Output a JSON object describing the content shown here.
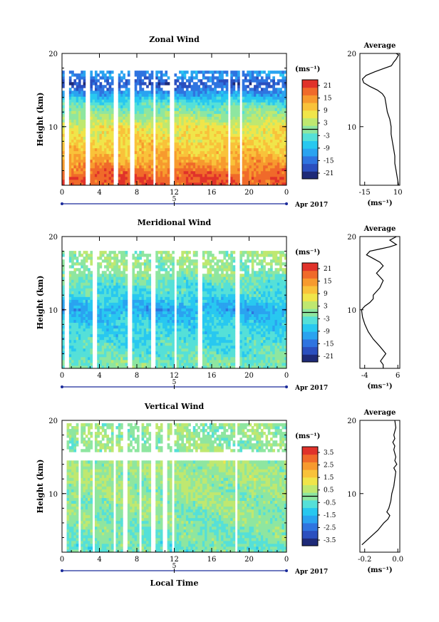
{
  "page": {
    "date_label": "Apr 2017",
    "xlabel": "Local Time"
  },
  "panels": [
    {
      "title": "Zonal Wind",
      "ylabel": "Height (km)",
      "y_ticks": [
        "20",
        "10"
      ],
      "x_ticks": [
        "0",
        "4",
        "8",
        "12",
        "16",
        "20",
        "0"
      ],
      "day_label": "5",
      "unit_label": "(ms⁻¹)",
      "cbar_ticks": [
        "21",
        "15",
        "9",
        "3",
        "-3",
        "-9",
        "-15",
        "-21"
      ],
      "avg_title": "Average",
      "avg_x_ticks": [
        "-15",
        "10"
      ],
      "avg_unit": "(ms⁻¹)"
    },
    {
      "title": "Meridional Wind",
      "ylabel": "Height (km)",
      "y_ticks": [
        "20",
        "10"
      ],
      "x_ticks": [
        "0",
        "4",
        "8",
        "12",
        "16",
        "20",
        "0"
      ],
      "day_label": "5",
      "unit_label": "(ms⁻¹)",
      "cbar_ticks": [
        "21",
        "15",
        "9",
        "3",
        "-3",
        "-9",
        "-15",
        "-21"
      ],
      "avg_title": "Average",
      "avg_x_ticks": [
        "-4",
        "6"
      ],
      "avg_unit": "(ms⁻¹)"
    },
    {
      "title": "Vertical Wind",
      "ylabel": "Height (km)",
      "y_ticks": [
        "20",
        "10"
      ],
      "x_ticks": [
        "0",
        "4",
        "8",
        "12",
        "16",
        "20",
        "0"
      ],
      "day_label": "5",
      "unit_label": "(ms⁻¹)",
      "cbar_ticks": [
        "3.5",
        "2.5",
        "1.5",
        "0.5",
        "-0.5",
        "-1.5",
        "-2.5",
        "-3.5"
      ],
      "avg_title": "Average",
      "avg_x_ticks": [
        "-0.2",
        "0.0"
      ],
      "avg_unit": "(ms⁻¹)"
    }
  ],
  "chart_data": [
    {
      "type": "heatmap",
      "title": "Zonal Wind",
      "ylabel": "Height (km)",
      "xlim_hours": [
        0,
        24
      ],
      "ylim_km": [
        2,
        20
      ],
      "colorbar_range": [
        -24,
        24
      ],
      "gaps_hours": [
        [
          0.2,
          0.8
        ],
        [
          2.6,
          3.0
        ],
        [
          5.5,
          5.9
        ],
        [
          7.3,
          7.7
        ],
        [
          9.7,
          10.1
        ],
        [
          11.6,
          12.0
        ],
        [
          17.7,
          18.1
        ],
        [
          19.0,
          19.3
        ]
      ],
      "profile_by_height": [
        {
          "h": 3,
          "v": 20
        },
        {
          "h": 4,
          "v": 17
        },
        {
          "h": 6,
          "v": 12
        },
        {
          "h": 8,
          "v": 9
        },
        {
          "h": 10,
          "v": 7
        },
        {
          "h": 11,
          "v": 3
        },
        {
          "h": 12,
          "v": 0
        },
        {
          "h": 13,
          "v": -3
        },
        {
          "h": 14,
          "v": -8
        },
        {
          "h": 15,
          "v": -14
        },
        {
          "h": 16,
          "v": -18
        },
        {
          "h": 17,
          "v": -12
        }
      ],
      "data_top_km": 17.8
    },
    {
      "type": "heatmap",
      "title": "Meridional Wind",
      "ylabel": "Height (km)",
      "xlim_hours": [
        0,
        24
      ],
      "ylim_km": [
        2,
        20
      ],
      "colorbar_range": [
        -24,
        24
      ],
      "gaps_hours": [
        [
          0.2,
          0.8
        ],
        [
          3.3,
          3.7
        ],
        [
          7.0,
          7.4
        ],
        [
          9.6,
          10.0
        ],
        [
          11.9,
          12.3
        ],
        [
          14.6,
          15.0
        ],
        [
          18.6,
          19.0
        ]
      ],
      "profile_by_height": [
        {
          "h": 3,
          "v": -1
        },
        {
          "h": 4,
          "v": -3
        },
        {
          "h": 6,
          "v": -5
        },
        {
          "h": 8,
          "v": -6
        },
        {
          "h": 9,
          "v": -8
        },
        {
          "h": 10,
          "v": -10
        },
        {
          "h": 11,
          "v": -8
        },
        {
          "h": 12,
          "v": -5
        },
        {
          "h": 13,
          "v": -4
        },
        {
          "h": 14,
          "v": -2
        },
        {
          "h": 15,
          "v": 0
        },
        {
          "h": 16,
          "v": 1
        }
      ],
      "data_top_km": 18.2
    },
    {
      "type": "heatmap",
      "title": "Vertical Wind",
      "ylabel": "Height (km)",
      "xlabel": "Local Time",
      "xlim_hours": [
        0,
        24
      ],
      "ylim_km": [
        2,
        20
      ],
      "colorbar_range": [
        -4,
        4
      ],
      "gaps_hours": [
        [
          0.1,
          0.6
        ],
        [
          1.7,
          2.1
        ],
        [
          3.3,
          3.6
        ],
        [
          5.4,
          5.8
        ],
        [
          6.6,
          6.9
        ],
        [
          8.2,
          8.6
        ],
        [
          9.5,
          9.9
        ],
        [
          10.7,
          11.2
        ],
        [
          11.7,
          12.1
        ],
        [
          18.4,
          18.8
        ]
      ],
      "profile_by_height": [
        {
          "h": 3,
          "v": -0.3
        },
        {
          "h": 5,
          "v": -0.2
        },
        {
          "h": 7,
          "v": 0.0
        },
        {
          "h": 9,
          "v": 0.1
        },
        {
          "h": 11,
          "v": 0.2
        },
        {
          "h": 13,
          "v": 0.3
        },
        {
          "h": 15,
          "v": 0.2
        },
        {
          "h": 17,
          "v": 0.0
        },
        {
          "h": 19,
          "v": 0.1
        }
      ],
      "data_top_km": 19.8
    },
    {
      "type": "line",
      "title": "Average",
      "xlabel": "(ms⁻¹)",
      "xlim": [
        -20,
        12
      ],
      "ylim": [
        2,
        20
      ],
      "x": [
        11,
        10,
        9,
        8,
        8,
        7,
        6,
        5,
        5,
        4,
        2,
        1,
        0,
        -2,
        -6,
        -12,
        -17,
        -18,
        -15,
        -8,
        0,
        5,
        6,
        7,
        8,
        9,
        10,
        11,
        9
      ],
      "y": [
        2,
        3,
        4,
        5,
        6,
        7,
        8,
        9,
        10,
        11,
        12,
        13,
        14,
        14.5,
        15,
        15.5,
        16,
        16.5,
        17,
        17.5,
        18,
        18.3,
        18.5,
        18.8,
        19,
        19.2,
        19.5,
        19.8,
        20
      ]
    },
    {
      "type": "line",
      "title": "Average",
      "xlabel": "(ms⁻¹)",
      "xlim": [
        -5,
        7
      ],
      "ylim": [
        2,
        20
      ],
      "x": [
        2,
        2,
        1.2,
        2.8,
        1,
        -1,
        -2.5,
        -3.5,
        -4.2,
        -4.5,
        -3.5,
        -2,
        -1,
        -1,
        0,
        1,
        2,
        1,
        0,
        1,
        2,
        1,
        -1,
        -3,
        -2,
        1,
        4,
        6,
        5,
        4,
        6
      ],
      "y": [
        2,
        2.5,
        3,
        4,
        5,
        6,
        7,
        8,
        9,
        10,
        10.5,
        11,
        11.5,
        12,
        12.5,
        13,
        14,
        14.5,
        15,
        15.5,
        16,
        16.5,
        17,
        17.5,
        18,
        18.3,
        18.6,
        18.9,
        19.2,
        19.5,
        20
      ]
    },
    {
      "type": "line",
      "title": "Average",
      "xlabel": "(ms⁻¹)",
      "xlim": [
        -0.3,
        0.1
      ],
      "ylim": [
        2,
        20
      ],
      "x": [
        -0.28,
        -0.2,
        -0.12,
        -0.06,
        -0.02,
        0.0,
        -0.03,
        -0.01,
        0.01,
        0.02,
        0.03,
        0.04,
        0.05,
        0.06,
        0.04,
        0.07,
        0.05,
        0.06,
        0.04,
        0.05,
        0.03,
        0.05,
        0.04,
        0.06,
        0.05
      ],
      "y": [
        3,
        4,
        5,
        6,
        6.5,
        7,
        7.5,
        8,
        9,
        10,
        10.5,
        11,
        12,
        13,
        13.5,
        14,
        14.5,
        15,
        16,
        16.5,
        17,
        17.5,
        18,
        19,
        20
      ]
    }
  ]
}
